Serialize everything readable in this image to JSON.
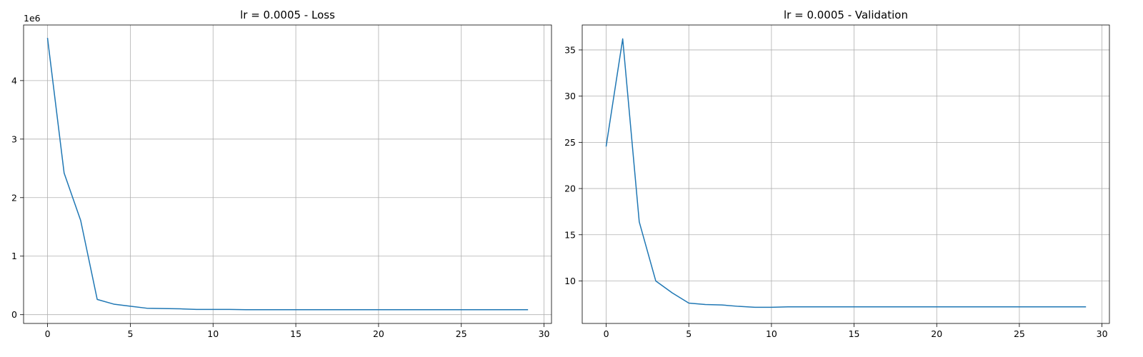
{
  "chart_data": [
    {
      "type": "line",
      "title": "lr = 0.0005 - Loss",
      "xlabel": "",
      "ylabel": "",
      "offset_text": "1e6",
      "xlim": [
        -1.45,
        30.45
      ],
      "ylim": [
        -0.15,
        4.95
      ],
      "xticks": [
        0,
        5,
        10,
        15,
        20,
        25,
        30
      ],
      "yticks": [
        0,
        1,
        2,
        3,
        4
      ],
      "grid": true,
      "series": [
        {
          "color": "#1f77b4",
          "x": [
            0,
            1,
            2,
            3,
            4,
            5,
            6,
            7,
            8,
            9,
            10,
            11,
            12,
            13,
            14,
            15,
            16,
            17,
            18,
            19,
            20,
            21,
            22,
            23,
            24,
            25,
            26,
            27,
            28,
            29
          ],
          "y": [
            4.72,
            2.42,
            1.61,
            0.26,
            0.18,
            0.145,
            0.11,
            0.105,
            0.1,
            0.09,
            0.09,
            0.09,
            0.085,
            0.085,
            0.085,
            0.085,
            0.085,
            0.085,
            0.085,
            0.085,
            0.085,
            0.085,
            0.085,
            0.085,
            0.085,
            0.085,
            0.085,
            0.085,
            0.085,
            0.085
          ]
        }
      ]
    },
    {
      "type": "line",
      "title": "lr = 0.0005 - Validation",
      "xlabel": "",
      "ylabel": "",
      "xlim": [
        -1.45,
        30.45
      ],
      "ylim": [
        5.4,
        37.7
      ],
      "xticks": [
        0,
        5,
        10,
        15,
        20,
        25,
        30
      ],
      "yticks": [
        10,
        15,
        20,
        25,
        30,
        35
      ],
      "grid": true,
      "series": [
        {
          "color": "#1f77b4",
          "x": [
            0,
            1,
            2,
            3,
            4,
            5,
            6,
            7,
            8,
            9,
            10,
            11,
            12,
            13,
            14,
            15,
            16,
            17,
            18,
            19,
            20,
            21,
            22,
            23,
            24,
            25,
            26,
            27,
            28,
            29
          ],
          "y": [
            24.6,
            36.2,
            16.4,
            10.0,
            8.7,
            7.6,
            7.45,
            7.4,
            7.25,
            7.15,
            7.15,
            7.2,
            7.2,
            7.2,
            7.2,
            7.2,
            7.2,
            7.2,
            7.2,
            7.2,
            7.2,
            7.2,
            7.2,
            7.2,
            7.2,
            7.2,
            7.2,
            7.2,
            7.2,
            7.2
          ]
        }
      ]
    }
  ]
}
